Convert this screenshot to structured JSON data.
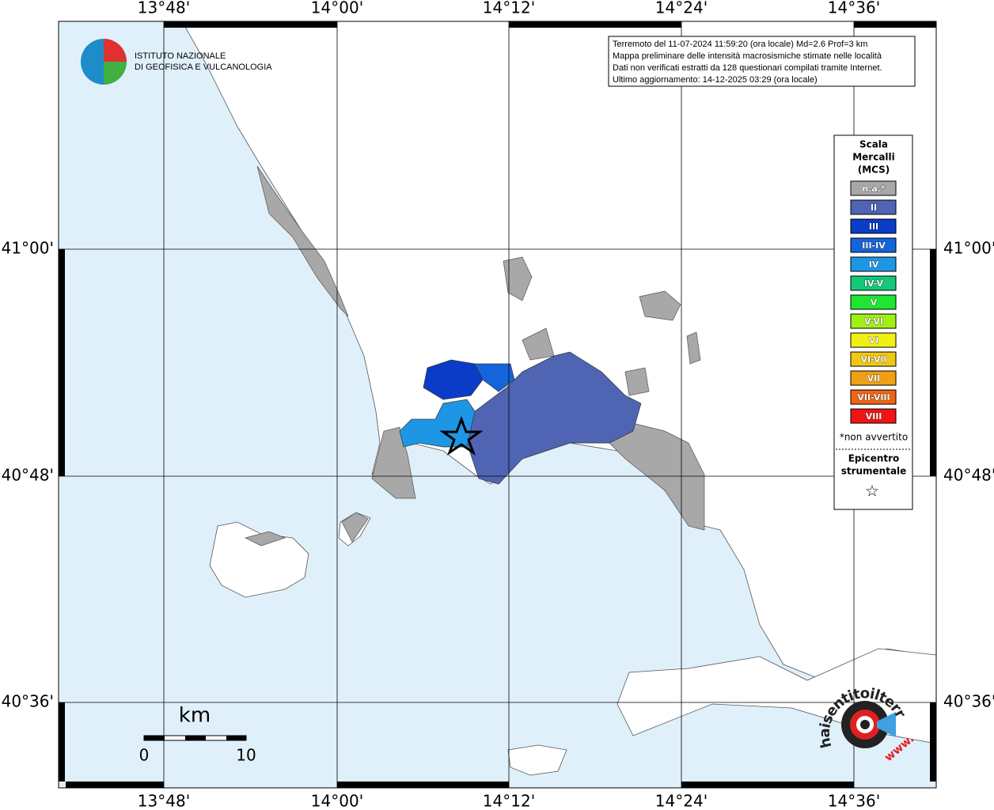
{
  "header": {
    "logo_lines": [
      "ISTITUTO NAZIONALE",
      "DI GEOFISICA E VULCANOLOGIA"
    ]
  },
  "axes": {
    "longitude_labels": [
      "13°48'",
      "14°00'",
      "14°12'",
      "14°24'",
      "14°36'"
    ],
    "latitude_labels": [
      "41°00'",
      "40°48'",
      "40°36'"
    ]
  },
  "info_box": {
    "lines": [
      "Terremoto del 11-07-2024 11:59:20 (ora locale) Md=2.6 Prof=3 km",
      "Mappa preliminare delle intensità macrosismiche stimate nelle località",
      "Dati non verificati estratti da 128 questionari compilati tramite Internet.",
      "Ultimo aggiornamento: 14-12-2025 03:29 (ora locale)"
    ]
  },
  "legend": {
    "title_lines": [
      "Scala",
      "Mercalli",
      "(MCS)"
    ],
    "items": [
      {
        "label": "n.a.*",
        "color": "#a8a8a8"
      },
      {
        "label": "II",
        "color": "#5064b4"
      },
      {
        "label": "III",
        "color": "#0a3cc8"
      },
      {
        "label": "III-IV",
        "color": "#1464dc"
      },
      {
        "label": "IV",
        "color": "#1e96e6"
      },
      {
        "label": "IV-V",
        "color": "#14c878"
      },
      {
        "label": "V",
        "color": "#1ee632"
      },
      {
        "label": "V-VI",
        "color": "#a0f014"
      },
      {
        "label": "VI",
        "color": "#f0f014"
      },
      {
        "label": "VI-VII",
        "color": "#f0c814"
      },
      {
        "label": "VII",
        "color": "#f0a014"
      },
      {
        "label": "VII-VIII",
        "color": "#f06414"
      },
      {
        "label": "VIII",
        "color": "#f01414"
      }
    ],
    "note": "*non avvertito",
    "epicenter_lines": [
      "Epicentro",
      "strumentale"
    ],
    "epicenter_symbol": "☆"
  },
  "scale_bar": {
    "unit": "km",
    "ticks": [
      0,
      10
    ]
  },
  "badge": {
    "text": "haisentitoilterremoto.it",
    "prefix": "www."
  }
}
